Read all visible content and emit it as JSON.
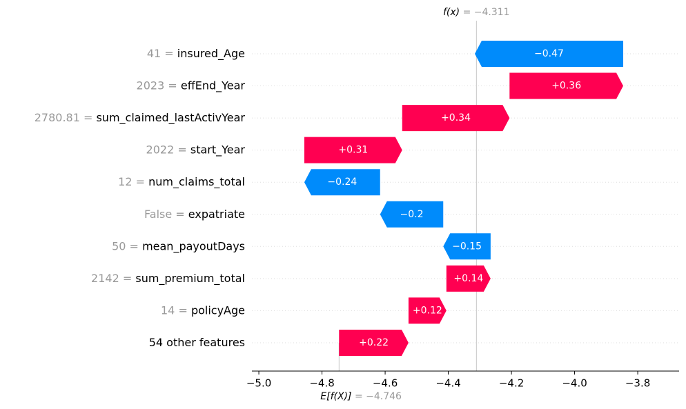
{
  "chart_data": {
    "type": "waterfall",
    "categories": [
      "insured_Age",
      "effEnd_Year",
      "sum_claimed_lastActivYear",
      "start_Year",
      "num_claims_total",
      "expatriate",
      "mean_payoutDays",
      "sum_premium_total",
      "policyAge",
      "54 other features"
    ],
    "feature_values": [
      "41 =",
      "2023 =",
      "2780.81 =",
      "2022 =",
      "12 =",
      "False =",
      "50 =",
      "2142 =",
      "14 =",
      null
    ],
    "values": [
      -0.47,
      0.36,
      0.34,
      0.31,
      -0.24,
      -0.2,
      -0.15,
      0.14,
      0.12,
      0.22
    ],
    "value_labels": [
      "−0.47",
      "+0.36",
      "+0.34",
      "+0.31",
      "−0.24",
      "−0.2",
      "−0.15",
      "+0.14",
      "+0.12",
      "+0.22"
    ],
    "positive_color": "#ff0051",
    "negative_color": "#008bfb",
    "base": {
      "label": "E[f(X)]",
      "text": "= −4.746",
      "value": -4.746
    },
    "output": {
      "label": "f(x)",
      "text": "= −4.311",
      "value": -4.311
    },
    "xlim": [
      -5.022,
      -3.669
    ],
    "xticks": [
      {
        "value": -5.0,
        "label": "−5.0"
      },
      {
        "value": -4.8,
        "label": "−4.8"
      },
      {
        "value": -4.6,
        "label": "−4.6"
      },
      {
        "value": -4.4,
        "label": "−4.4"
      },
      {
        "value": -4.2,
        "label": "−4.2"
      },
      {
        "value": -4.0,
        "label": "−4.0"
      },
      {
        "value": -3.8,
        "label": "−3.8"
      }
    ],
    "grid": true
  }
}
